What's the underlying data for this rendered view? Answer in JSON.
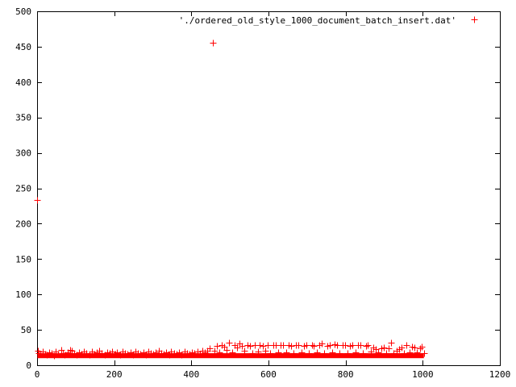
{
  "chart_data": {
    "type": "scatter",
    "title": "",
    "xlabel": "",
    "ylabel": "",
    "xlim": [
      0,
      1200
    ],
    "ylim": [
      0,
      500
    ],
    "x_ticks": [
      0,
      200,
      400,
      600,
      800,
      1000,
      1200
    ],
    "y_ticks": [
      0,
      50,
      100,
      150,
      200,
      250,
      300,
      350,
      400,
      450,
      500
    ],
    "x_tick_labels": [
      "0",
      "200",
      "400",
      "600",
      "800",
      "1000",
      "1200"
    ],
    "y_tick_labels": [
      "0",
      "50",
      "100",
      "150",
      "200",
      "250",
      "300",
      "350",
      "400",
      "450",
      "500"
    ],
    "grid": false,
    "legend_position": "top-right",
    "marker": "+",
    "series": [
      {
        "name": "'./ordered_old_style_1000_document_batch_insert.dat'",
        "color": "#ff0000",
        "points": [
          [
            1,
            233
          ],
          [
            2,
            20
          ],
          [
            5,
            17
          ],
          [
            9,
            16
          ],
          [
            14,
            19
          ],
          [
            20,
            16
          ],
          [
            26,
            15
          ],
          [
            31,
            18
          ],
          [
            37,
            17
          ],
          [
            43,
            14
          ],
          [
            48,
            19
          ],
          [
            55,
            16
          ],
          [
            62,
            22
          ],
          [
            66,
            17
          ],
          [
            72,
            15
          ],
          [
            80,
            18
          ],
          [
            85,
            22
          ],
          [
            90,
            20
          ],
          [
            96,
            17
          ],
          [
            102,
            15
          ],
          [
            108,
            18
          ],
          [
            115,
            16
          ],
          [
            122,
            19
          ],
          [
            128,
            17
          ],
          [
            135,
            15
          ],
          [
            142,
            19
          ],
          [
            148,
            16
          ],
          [
            155,
            18
          ],
          [
            162,
            21
          ],
          [
            168,
            17
          ],
          [
            175,
            15
          ],
          [
            182,
            18
          ],
          [
            188,
            17
          ],
          [
            195,
            19
          ],
          [
            202,
            16
          ],
          [
            208,
            18
          ],
          [
            215,
            15
          ],
          [
            222,
            19
          ],
          [
            228,
            17
          ],
          [
            235,
            16
          ],
          [
            242,
            18
          ],
          [
            248,
            15
          ],
          [
            255,
            19
          ],
          [
            262,
            17
          ],
          [
            268,
            16
          ],
          [
            275,
            18
          ],
          [
            282,
            15
          ],
          [
            288,
            19
          ],
          [
            295,
            17
          ],
          [
            302,
            16
          ],
          [
            308,
            18
          ],
          [
            315,
            20
          ],
          [
            322,
            17
          ],
          [
            328,
            16
          ],
          [
            335,
            18
          ],
          [
            342,
            15
          ],
          [
            348,
            19
          ],
          [
            355,
            17
          ],
          [
            362,
            16
          ],
          [
            368,
            18
          ],
          [
            375,
            15
          ],
          [
            382,
            19
          ],
          [
            388,
            17
          ],
          [
            395,
            16
          ],
          [
            402,
            18
          ],
          [
            408,
            17
          ],
          [
            415,
            19
          ],
          [
            422,
            16
          ],
          [
            428,
            20
          ],
          [
            435,
            18
          ],
          [
            442,
            21
          ],
          [
            448,
            24
          ],
          [
            455,
            456
          ],
          [
            460,
            20
          ],
          [
            466,
            27
          ],
          [
            472,
            18
          ],
          [
            478,
            29
          ],
          [
            485,
            26
          ],
          [
            492,
            22
          ],
          [
            498,
            32
          ],
          [
            505,
            18
          ],
          [
            512,
            28
          ],
          [
            518,
            25
          ],
          [
            525,
            31
          ],
          [
            532,
            27
          ],
          [
            538,
            20
          ],
          [
            545,
            29
          ],
          [
            552,
            27
          ],
          [
            558,
            17
          ],
          [
            565,
            29
          ],
          [
            572,
            19
          ],
          [
            578,
            28
          ],
          [
            585,
            27
          ],
          [
            592,
            20
          ],
          [
            598,
            29
          ],
          [
            605,
            17
          ],
          [
            612,
            28
          ],
          [
            618,
            29
          ],
          [
            625,
            18
          ],
          [
            632,
            28
          ],
          [
            638,
            29
          ],
          [
            645,
            18
          ],
          [
            652,
            29
          ],
          [
            658,
            27
          ],
          [
            665,
            17
          ],
          [
            672,
            28
          ],
          [
            678,
            28
          ],
          [
            685,
            18
          ],
          [
            692,
            27
          ],
          [
            698,
            29
          ],
          [
            705,
            17
          ],
          [
            712,
            28
          ],
          [
            718,
            27
          ],
          [
            725,
            18
          ],
          [
            732,
            28
          ],
          [
            738,
            31
          ],
          [
            745,
            17
          ],
          [
            752,
            27
          ],
          [
            758,
            29
          ],
          [
            765,
            18
          ],
          [
            772,
            30
          ],
          [
            778,
            28
          ],
          [
            785,
            17
          ],
          [
            792,
            28
          ],
          [
            798,
            29
          ],
          [
            805,
            17
          ],
          [
            812,
            27
          ],
          [
            818,
            28
          ],
          [
            825,
            18
          ],
          [
            832,
            28
          ],
          [
            838,
            29
          ],
          [
            845,
            17
          ],
          [
            852,
            27
          ],
          [
            858,
            28
          ],
          [
            865,
            19
          ],
          [
            872,
            25
          ],
          [
            878,
            23
          ],
          [
            885,
            18
          ],
          [
            892,
            24
          ],
          [
            898,
            25
          ],
          [
            905,
            17
          ],
          [
            912,
            24
          ],
          [
            918,
            32
          ],
          [
            925,
            17
          ],
          [
            932,
            20
          ],
          [
            938,
            23
          ],
          [
            945,
            25
          ],
          [
            952,
            17
          ],
          [
            958,
            28
          ],
          [
            965,
            18
          ],
          [
            972,
            26
          ],
          [
            978,
            25
          ],
          [
            985,
            18
          ],
          [
            992,
            24
          ],
          [
            998,
            26
          ],
          [
            1003,
            17
          ]
        ]
      }
    ]
  }
}
